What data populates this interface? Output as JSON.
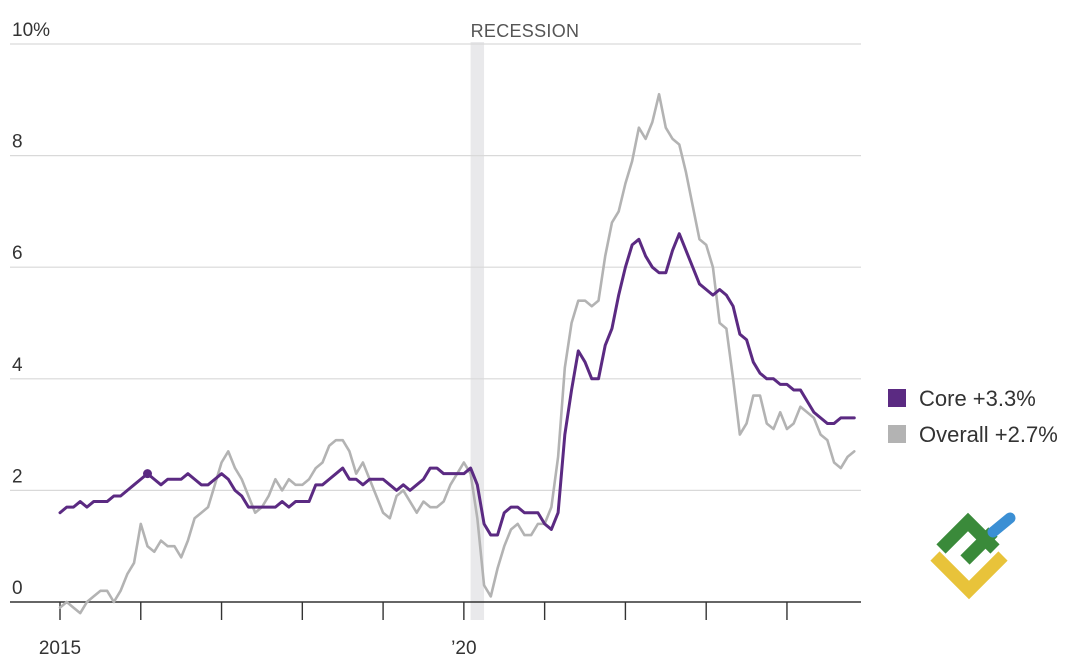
{
  "chart_data": {
    "type": "line",
    "y_unit": "%",
    "ylim": [
      0,
      10
    ],
    "y_ticks": [
      {
        "value": 10,
        "label": "10%"
      },
      {
        "value": 8,
        "label": "8"
      },
      {
        "value": 6,
        "label": "6"
      },
      {
        "value": 4,
        "label": "4"
      },
      {
        "value": 2,
        "label": "2"
      },
      {
        "value": 0,
        "label": "0"
      }
    ],
    "x_range": [
      "2015-01",
      "2024-12"
    ],
    "x_tick_years": [
      2015,
      2016,
      2017,
      2018,
      2019,
      2020,
      2021,
      2022,
      2023,
      2024
    ],
    "x_tick_labels": [
      {
        "year": 2015,
        "label": "2015"
      },
      {
        "year": 2020,
        "label": "’20"
      }
    ],
    "grid": true,
    "legend_position": "right",
    "recession": {
      "label": "RECESSION",
      "start": "2020-02",
      "end": "2020-04",
      "color": "#e9e9eb"
    },
    "series": [
      {
        "name": "Core",
        "legend_label": "Core +3.3%",
        "color": "#5b2a82",
        "marker": {
          "date": "2016-02",
          "value": 2.3
        },
        "points": [
          [
            "2015-01",
            1.6
          ],
          [
            "2015-02",
            1.7
          ],
          [
            "2015-03",
            1.7
          ],
          [
            "2015-04",
            1.8
          ],
          [
            "2015-05",
            1.7
          ],
          [
            "2015-06",
            1.8
          ],
          [
            "2015-07",
            1.8
          ],
          [
            "2015-08",
            1.8
          ],
          [
            "2015-09",
            1.9
          ],
          [
            "2015-10",
            1.9
          ],
          [
            "2015-11",
            2.0
          ],
          [
            "2015-12",
            2.1
          ],
          [
            "2016-01",
            2.2
          ],
          [
            "2016-02",
            2.3
          ],
          [
            "2016-03",
            2.2
          ],
          [
            "2016-04",
            2.1
          ],
          [
            "2016-05",
            2.2
          ],
          [
            "2016-06",
            2.2
          ],
          [
            "2016-07",
            2.2
          ],
          [
            "2016-08",
            2.3
          ],
          [
            "2016-09",
            2.2
          ],
          [
            "2016-10",
            2.1
          ],
          [
            "2016-11",
            2.1
          ],
          [
            "2016-12",
            2.2
          ],
          [
            "2017-01",
            2.3
          ],
          [
            "2017-02",
            2.2
          ],
          [
            "2017-03",
            2.0
          ],
          [
            "2017-04",
            1.9
          ],
          [
            "2017-05",
            1.7
          ],
          [
            "2017-06",
            1.7
          ],
          [
            "2017-07",
            1.7
          ],
          [
            "2017-08",
            1.7
          ],
          [
            "2017-09",
            1.7
          ],
          [
            "2017-10",
            1.8
          ],
          [
            "2017-11",
            1.7
          ],
          [
            "2017-12",
            1.8
          ],
          [
            "2018-01",
            1.8
          ],
          [
            "2018-02",
            1.8
          ],
          [
            "2018-03",
            2.1
          ],
          [
            "2018-04",
            2.1
          ],
          [
            "2018-05",
            2.2
          ],
          [
            "2018-06",
            2.3
          ],
          [
            "2018-07",
            2.4
          ],
          [
            "2018-08",
            2.2
          ],
          [
            "2018-09",
            2.2
          ],
          [
            "2018-10",
            2.1
          ],
          [
            "2018-11",
            2.2
          ],
          [
            "2018-12",
            2.2
          ],
          [
            "2019-01",
            2.2
          ],
          [
            "2019-02",
            2.1
          ],
          [
            "2019-03",
            2.0
          ],
          [
            "2019-04",
            2.1
          ],
          [
            "2019-05",
            2.0
          ],
          [
            "2019-06",
            2.1
          ],
          [
            "2019-07",
            2.2
          ],
          [
            "2019-08",
            2.4
          ],
          [
            "2019-09",
            2.4
          ],
          [
            "2019-10",
            2.3
          ],
          [
            "2019-11",
            2.3
          ],
          [
            "2019-12",
            2.3
          ],
          [
            "2020-01",
            2.3
          ],
          [
            "2020-02",
            2.4
          ],
          [
            "2020-03",
            2.1
          ],
          [
            "2020-04",
            1.4
          ],
          [
            "2020-05",
            1.2
          ],
          [
            "2020-06",
            1.2
          ],
          [
            "2020-07",
            1.6
          ],
          [
            "2020-08",
            1.7
          ],
          [
            "2020-09",
            1.7
          ],
          [
            "2020-10",
            1.6
          ],
          [
            "2020-11",
            1.6
          ],
          [
            "2020-12",
            1.6
          ],
          [
            "2021-01",
            1.4
          ],
          [
            "2021-02",
            1.3
          ],
          [
            "2021-03",
            1.6
          ],
          [
            "2021-04",
            3.0
          ],
          [
            "2021-05",
            3.8
          ],
          [
            "2021-06",
            4.5
          ],
          [
            "2021-07",
            4.3
          ],
          [
            "2021-08",
            4.0
          ],
          [
            "2021-09",
            4.0
          ],
          [
            "2021-10",
            4.6
          ],
          [
            "2021-11",
            4.9
          ],
          [
            "2021-12",
            5.5
          ],
          [
            "2022-01",
            6.0
          ],
          [
            "2022-02",
            6.4
          ],
          [
            "2022-03",
            6.5
          ],
          [
            "2022-04",
            6.2
          ],
          [
            "2022-05",
            6.0
          ],
          [
            "2022-06",
            5.9
          ],
          [
            "2022-07",
            5.9
          ],
          [
            "2022-08",
            6.3
          ],
          [
            "2022-09",
            6.6
          ],
          [
            "2022-10",
            6.3
          ],
          [
            "2022-11",
            6.0
          ],
          [
            "2022-12",
            5.7
          ],
          [
            "2023-01",
            5.6
          ],
          [
            "2023-02",
            5.5
          ],
          [
            "2023-03",
            5.6
          ],
          [
            "2023-04",
            5.5
          ],
          [
            "2023-05",
            5.3
          ],
          [
            "2023-06",
            4.8
          ],
          [
            "2023-07",
            4.7
          ],
          [
            "2023-08",
            4.3
          ],
          [
            "2023-09",
            4.1
          ],
          [
            "2023-10",
            4.0
          ],
          [
            "2023-11",
            4.0
          ],
          [
            "2023-12",
            3.9
          ],
          [
            "2024-01",
            3.9
          ],
          [
            "2024-02",
            3.8
          ],
          [
            "2024-03",
            3.8
          ],
          [
            "2024-04",
            3.6
          ],
          [
            "2024-05",
            3.4
          ],
          [
            "2024-06",
            3.3
          ],
          [
            "2024-07",
            3.2
          ],
          [
            "2024-08",
            3.2
          ],
          [
            "2024-09",
            3.3
          ],
          [
            "2024-10",
            3.3
          ],
          [
            "2024-11",
            3.3
          ]
        ]
      },
      {
        "name": "Overall",
        "legend_label": "Overall +2.7%",
        "color": "#b3b3b3",
        "points": [
          [
            "2015-01",
            -0.1
          ],
          [
            "2015-02",
            0.0
          ],
          [
            "2015-03",
            -0.1
          ],
          [
            "2015-04",
            -0.2
          ],
          [
            "2015-05",
            0.0
          ],
          [
            "2015-06",
            0.1
          ],
          [
            "2015-07",
            0.2
          ],
          [
            "2015-08",
            0.2
          ],
          [
            "2015-09",
            0.0
          ],
          [
            "2015-10",
            0.2
          ],
          [
            "2015-11",
            0.5
          ],
          [
            "2015-12",
            0.7
          ],
          [
            "2016-01",
            1.4
          ],
          [
            "2016-02",
            1.0
          ],
          [
            "2016-03",
            0.9
          ],
          [
            "2016-04",
            1.1
          ],
          [
            "2016-05",
            1.0
          ],
          [
            "2016-06",
            1.0
          ],
          [
            "2016-07",
            0.8
          ],
          [
            "2016-08",
            1.1
          ],
          [
            "2016-09",
            1.5
          ],
          [
            "2016-10",
            1.6
          ],
          [
            "2016-11",
            1.7
          ],
          [
            "2016-12",
            2.1
          ],
          [
            "2017-01",
            2.5
          ],
          [
            "2017-02",
            2.7
          ],
          [
            "2017-03",
            2.4
          ],
          [
            "2017-04",
            2.2
          ],
          [
            "2017-05",
            1.9
          ],
          [
            "2017-06",
            1.6
          ],
          [
            "2017-07",
            1.7
          ],
          [
            "2017-08",
            1.9
          ],
          [
            "2017-09",
            2.2
          ],
          [
            "2017-10",
            2.0
          ],
          [
            "2017-11",
            2.2
          ],
          [
            "2017-12",
            2.1
          ],
          [
            "2018-01",
            2.1
          ],
          [
            "2018-02",
            2.2
          ],
          [
            "2018-03",
            2.4
          ],
          [
            "2018-04",
            2.5
          ],
          [
            "2018-05",
            2.8
          ],
          [
            "2018-06",
            2.9
          ],
          [
            "2018-07",
            2.9
          ],
          [
            "2018-08",
            2.7
          ],
          [
            "2018-09",
            2.3
          ],
          [
            "2018-10",
            2.5
          ],
          [
            "2018-11",
            2.2
          ],
          [
            "2018-12",
            1.9
          ],
          [
            "2019-01",
            1.6
          ],
          [
            "2019-02",
            1.5
          ],
          [
            "2019-03",
            1.9
          ],
          [
            "2019-04",
            2.0
          ],
          [
            "2019-05",
            1.8
          ],
          [
            "2019-06",
            1.6
          ],
          [
            "2019-07",
            1.8
          ],
          [
            "2019-08",
            1.7
          ],
          [
            "2019-09",
            1.7
          ],
          [
            "2019-10",
            1.8
          ],
          [
            "2019-11",
            2.1
          ],
          [
            "2019-12",
            2.3
          ],
          [
            "2020-01",
            2.5
          ],
          [
            "2020-02",
            2.3
          ],
          [
            "2020-03",
            1.5
          ],
          [
            "2020-04",
            0.3
          ],
          [
            "2020-05",
            0.1
          ],
          [
            "2020-06",
            0.6
          ],
          [
            "2020-07",
            1.0
          ],
          [
            "2020-08",
            1.3
          ],
          [
            "2020-09",
            1.4
          ],
          [
            "2020-10",
            1.2
          ],
          [
            "2020-11",
            1.2
          ],
          [
            "2020-12",
            1.4
          ],
          [
            "2021-01",
            1.4
          ],
          [
            "2021-02",
            1.7
          ],
          [
            "2021-03",
            2.6
          ],
          [
            "2021-04",
            4.2
          ],
          [
            "2021-05",
            5.0
          ],
          [
            "2021-06",
            5.4
          ],
          [
            "2021-07",
            5.4
          ],
          [
            "2021-08",
            5.3
          ],
          [
            "2021-09",
            5.4
          ],
          [
            "2021-10",
            6.2
          ],
          [
            "2021-11",
            6.8
          ],
          [
            "2021-12",
            7.0
          ],
          [
            "2022-01",
            7.5
          ],
          [
            "2022-02",
            7.9
          ],
          [
            "2022-03",
            8.5
          ],
          [
            "2022-04",
            8.3
          ],
          [
            "2022-05",
            8.6
          ],
          [
            "2022-06",
            9.1
          ],
          [
            "2022-07",
            8.5
          ],
          [
            "2022-08",
            8.3
          ],
          [
            "2022-09",
            8.2
          ],
          [
            "2022-10",
            7.7
          ],
          [
            "2022-11",
            7.1
          ],
          [
            "2022-12",
            6.5
          ],
          [
            "2023-01",
            6.4
          ],
          [
            "2023-02",
            6.0
          ],
          [
            "2023-03",
            5.0
          ],
          [
            "2023-04",
            4.9
          ],
          [
            "2023-05",
            4.0
          ],
          [
            "2023-06",
            3.0
          ],
          [
            "2023-07",
            3.2
          ],
          [
            "2023-08",
            3.7
          ],
          [
            "2023-09",
            3.7
          ],
          [
            "2023-10",
            3.2
          ],
          [
            "2023-11",
            3.1
          ],
          [
            "2023-12",
            3.4
          ],
          [
            "2024-01",
            3.1
          ],
          [
            "2024-02",
            3.2
          ],
          [
            "2024-03",
            3.5
          ],
          [
            "2024-04",
            3.4
          ],
          [
            "2024-05",
            3.3
          ],
          [
            "2024-06",
            3.0
          ],
          [
            "2024-07",
            2.9
          ],
          [
            "2024-08",
            2.5
          ],
          [
            "2024-09",
            2.4
          ],
          [
            "2024-10",
            2.6
          ],
          [
            "2024-11",
            2.7
          ]
        ]
      }
    ]
  },
  "brand_logo": {
    "icon": "brand-logo-icon",
    "colors": {
      "green": "#3a8a3a",
      "yellow": "#e8c33a",
      "blue": "#3b8fd4"
    }
  }
}
